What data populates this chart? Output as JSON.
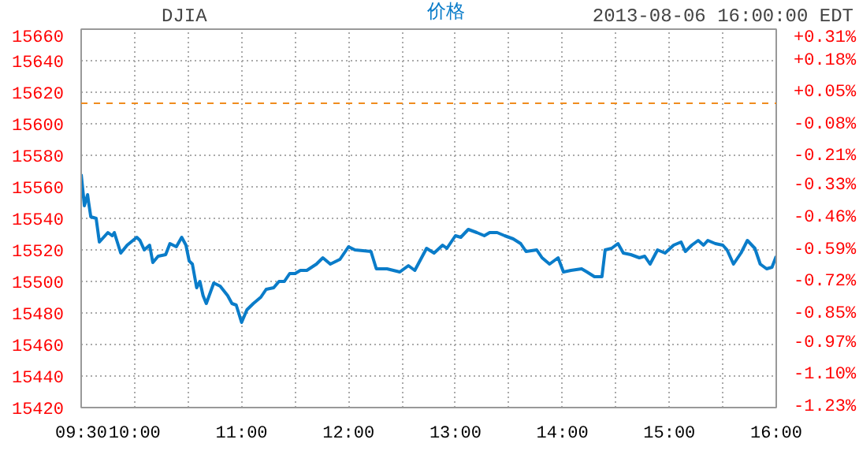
{
  "chart_data": {
    "type": "line",
    "title": "DJIA",
    "subtitle": "2013-08-06 16:00:00 EDT",
    "x": [
      9.5,
      9.52,
      9.53,
      9.56,
      9.57,
      9.59,
      9.64,
      9.67,
      9.71,
      9.75,
      9.79,
      9.81,
      9.87,
      9.93,
      10.02,
      10.05,
      10.09,
      10.14,
      10.17,
      10.22,
      10.29,
      10.33,
      10.39,
      10.44,
      10.48,
      10.51,
      10.54,
      10.58,
      10.61,
      10.64,
      10.67,
      10.74,
      10.8,
      10.87,
      10.91,
      10.95,
      11.0,
      11.05,
      11.11,
      11.18,
      11.23,
      11.3,
      11.35,
      11.4,
      11.45,
      11.5,
      11.55,
      11.61,
      11.7,
      11.76,
      11.83,
      11.92,
      12.0,
      12.06,
      12.21,
      12.26,
      12.36,
      12.48,
      12.56,
      12.62,
      12.73,
      12.8,
      12.88,
      12.92,
      13.0,
      13.05,
      13.12,
      13.2,
      13.27,
      13.32,
      13.39,
      13.46,
      13.54,
      13.61,
      13.66,
      13.76,
      13.81,
      13.88,
      13.96,
      14.01,
      14.08,
      14.18,
      14.23,
      14.3,
      14.37,
      14.4,
      14.46,
      14.52,
      14.57,
      14.64,
      14.72,
      14.77,
      14.82,
      14.89,
      14.96,
      15.04,
      15.11,
      15.15,
      15.21,
      15.27,
      15.32,
      15.36,
      15.43,
      15.5,
      15.54,
      15.6,
      15.67,
      15.73,
      15.8,
      15.85,
      15.91,
      15.96,
      16.0
    ],
    "series": [
      {
        "name": "价格",
        "color": "#0a7cc9",
        "values": [
          15568,
          15555,
          15548,
          15555,
          15550,
          15541,
          15540,
          15525,
          15528,
          15531,
          15529,
          15531,
          15518,
          15523,
          15528,
          15526,
          15520,
          15523,
          15512,
          15516,
          15517,
          15524,
          15522,
          15528,
          15523,
          15513,
          15511,
          15496,
          15500,
          15491,
          15486,
          15499,
          15497,
          15491,
          15486,
          15485,
          15474,
          15482,
          15486,
          15490,
          15495,
          15496,
          15500,
          15500,
          15505,
          15505,
          15507,
          15507,
          15511,
          15515,
          15511,
          15514,
          15522,
          15520,
          15519,
          15508,
          15508,
          15506,
          15510,
          15507,
          15521,
          15518,
          15523,
          15521,
          15529,
          15528,
          15533,
          15531,
          15529,
          15531,
          15531,
          15529,
          15527,
          15524,
          15519,
          15520,
          15515,
          15511,
          15515,
          15506,
          15507,
          15508,
          15506,
          15503,
          15503,
          15520,
          15521,
          15524,
          15518,
          15517,
          15515,
          15516,
          15511,
          15520,
          15518,
          15523,
          15525,
          15519,
          15523,
          15526,
          15523,
          15526,
          15524,
          15523,
          15520,
          15511,
          15518,
          15526,
          15521,
          15511,
          15508,
          15509,
          15516
        ]
      }
    ],
    "xlim": [
      9.5,
      16
    ],
    "xticks": [
      {
        "value": 9.5,
        "label": "09:30"
      },
      {
        "value": 10,
        "label": "10:00"
      },
      {
        "value": 10.5,
        "label": null
      },
      {
        "value": 11,
        "label": "11:00"
      },
      {
        "value": 11.5,
        "label": null
      },
      {
        "value": 12,
        "label": "12:00"
      },
      {
        "value": 12.5,
        "label": null
      },
      {
        "value": 13,
        "label": "13:00"
      },
      {
        "value": 13.5,
        "label": null
      },
      {
        "value": 14,
        "label": "14:00"
      },
      {
        "value": 14.5,
        "label": null
      },
      {
        "value": 15,
        "label": "15:00"
      },
      {
        "value": 15.5,
        "label": null
      },
      {
        "value": 16,
        "label": "16:00"
      }
    ],
    "ylim": [
      15420,
      15660
    ],
    "yticks": [
      15420,
      15440,
      15460,
      15480,
      15500,
      15520,
      15540,
      15560,
      15580,
      15600,
      15620,
      15640,
      15660
    ],
    "y2lim": [
      -1.23,
      0.31
    ],
    "y2ticks": [
      {
        "value": -1.23,
        "label": "-1.23%"
      },
      {
        "value": -1.1,
        "label": "-1.10%"
      },
      {
        "value": -0.97,
        "label": "-0.97%"
      },
      {
        "value": -0.85,
        "label": "-0.85%"
      },
      {
        "value": -0.72,
        "label": "-0.72%"
      },
      {
        "value": -0.59,
        "label": "-0.59%"
      },
      {
        "value": -0.46,
        "label": "-0.46%"
      },
      {
        "value": -0.33,
        "label": "-0.33%"
      },
      {
        "value": -0.21,
        "label": "-0.21%"
      },
      {
        "value": -0.08,
        "label": "-0.08%"
      },
      {
        "value": 0.05,
        "label": "+0.05%"
      },
      {
        "value": 0.18,
        "label": "+0.18%"
      },
      {
        "value": 0.31,
        "label": "+0.31%"
      }
    ],
    "ref_lines": [
      {
        "axis": "y",
        "value": 15613,
        "color": "#f08c1e",
        "line_style": "dashed"
      }
    ],
    "grid": true,
    "legend": "top",
    "marker": "none",
    "line_style": "solid"
  }
}
